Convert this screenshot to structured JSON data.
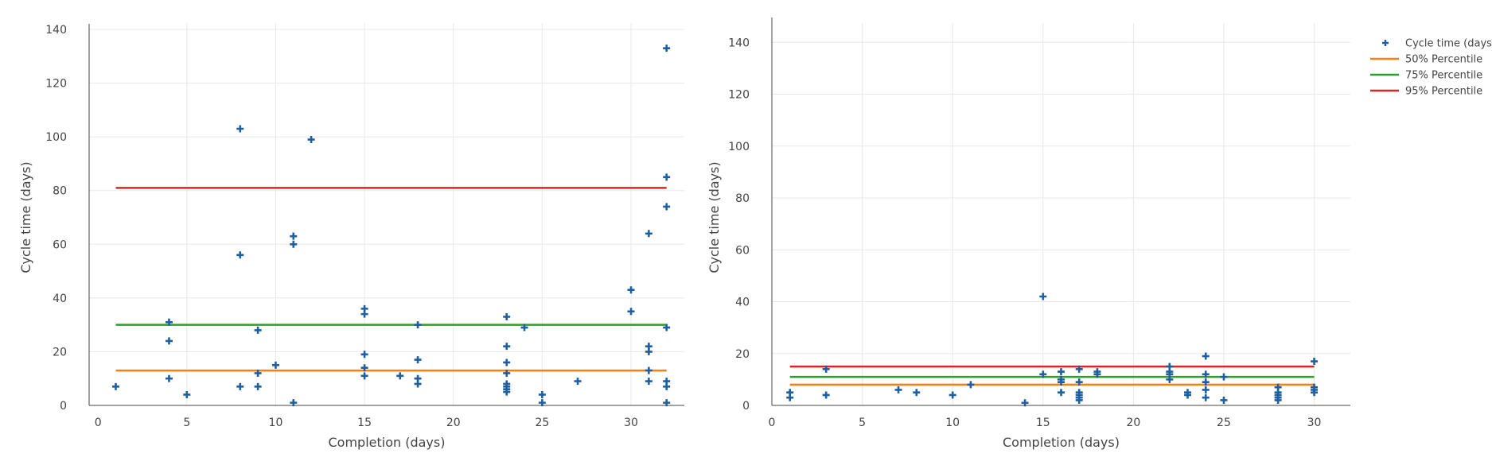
{
  "chart_data": [
    {
      "type": "scatter",
      "xlabel": "Completion (days)",
      "ylabel": "Cycle time (days)",
      "xlim": [
        -0.5,
        33
      ],
      "ylim": [
        0,
        140
      ],
      "xticks": [
        0,
        5,
        10,
        15,
        20,
        25,
        30
      ],
      "yticks": [
        0,
        20,
        40,
        60,
        80,
        100,
        120,
        140
      ],
      "grid": true,
      "series": [
        {
          "name": "Cycle time (days)",
          "kind": "scatter",
          "color": "#1f5fa0",
          "points": [
            [
              1,
              7
            ],
            [
              4,
              31
            ],
            [
              4,
              24
            ],
            [
              4,
              10
            ],
            [
              5,
              4
            ],
            [
              8,
              103
            ],
            [
              8,
              56
            ],
            [
              8,
              7
            ],
            [
              9,
              28
            ],
            [
              9,
              12
            ],
            [
              9,
              7
            ],
            [
              10,
              15
            ],
            [
              11,
              63
            ],
            [
              11,
              60
            ],
            [
              11,
              1
            ],
            [
              12,
              99
            ],
            [
              15,
              36
            ],
            [
              15,
              34
            ],
            [
              15,
              19
            ],
            [
              15,
              14
            ],
            [
              15,
              11
            ],
            [
              17,
              11
            ],
            [
              18,
              30
            ],
            [
              18,
              17
            ],
            [
              18,
              10
            ],
            [
              18,
              8
            ],
            [
              23,
              33
            ],
            [
              23,
              22
            ],
            [
              23,
              16
            ],
            [
              23,
              12
            ],
            [
              23,
              8
            ],
            [
              23,
              7
            ],
            [
              23,
              6
            ],
            [
              23,
              5
            ],
            [
              24,
              29
            ],
            [
              25,
              4
            ],
            [
              25,
              1
            ],
            [
              27,
              9
            ],
            [
              30,
              43
            ],
            [
              30,
              35
            ],
            [
              31,
              64
            ],
            [
              31,
              22
            ],
            [
              31,
              20
            ],
            [
              31,
              13
            ],
            [
              31,
              9
            ],
            [
              32,
              133
            ],
            [
              32,
              85
            ],
            [
              32,
              74
            ],
            [
              32,
              29
            ],
            [
              32,
              9
            ],
            [
              32,
              7
            ],
            [
              32,
              1
            ]
          ]
        },
        {
          "name": "50% Percentile",
          "kind": "line",
          "color": "#ff7f0e",
          "x": [
            1,
            32
          ],
          "y": [
            13,
            13
          ]
        },
        {
          "name": "75% Percentile",
          "kind": "line",
          "color": "#2ca02c",
          "x": [
            1,
            32
          ],
          "y": [
            30,
            30
          ]
        },
        {
          "name": "95% Percentile",
          "kind": "line",
          "color": "#d62728",
          "x": [
            1,
            32
          ],
          "y": [
            81,
            81
          ]
        }
      ]
    },
    {
      "type": "scatter",
      "xlabel": "Completion (days)",
      "ylabel": "Cycle time (days)",
      "xlim": [
        0,
        32
      ],
      "ylim": [
        0,
        145
      ],
      "xticks": [
        0,
        5,
        10,
        15,
        20,
        25,
        30
      ],
      "yticks": [
        0,
        20,
        40,
        60,
        80,
        100,
        120,
        140
      ],
      "grid": true,
      "legend_position": "top-right",
      "series": [
        {
          "name": "Cycle time (days)",
          "kind": "scatter",
          "color": "#1f5fa0",
          "points": [
            [
              1,
              5
            ],
            [
              1,
              3
            ],
            [
              3,
              14
            ],
            [
              3,
              4
            ],
            [
              7,
              6
            ],
            [
              8,
              5
            ],
            [
              10,
              4
            ],
            [
              11,
              8
            ],
            [
              14,
              1
            ],
            [
              15,
              42
            ],
            [
              15,
              12
            ],
            [
              16,
              13
            ],
            [
              16,
              10
            ],
            [
              16,
              9
            ],
            [
              16,
              5
            ],
            [
              17,
              14
            ],
            [
              17,
              9
            ],
            [
              17,
              5
            ],
            [
              17,
              4
            ],
            [
              17,
              3
            ],
            [
              17,
              2
            ],
            [
              18,
              13
            ],
            [
              18,
              12
            ],
            [
              22,
              15
            ],
            [
              22,
              13
            ],
            [
              22,
              12
            ],
            [
              22,
              10
            ],
            [
              23,
              5
            ],
            [
              23,
              4
            ],
            [
              24,
              19
            ],
            [
              24,
              12
            ],
            [
              24,
              9
            ],
            [
              24,
              6
            ],
            [
              24,
              3
            ],
            [
              25,
              11
            ],
            [
              25,
              2
            ],
            [
              28,
              7
            ],
            [
              28,
              5
            ],
            [
              28,
              4
            ],
            [
              28,
              3
            ],
            [
              28,
              2
            ],
            [
              30,
              17
            ],
            [
              30,
              7
            ],
            [
              30,
              6
            ],
            [
              30,
              5
            ]
          ]
        },
        {
          "name": "50% Percentile",
          "kind": "line",
          "color": "#ff7f0e",
          "x": [
            1,
            30
          ],
          "y": [
            8,
            8
          ]
        },
        {
          "name": "75% Percentile",
          "kind": "line",
          "color": "#2ca02c",
          "x": [
            1,
            30
          ],
          "y": [
            11,
            11
          ]
        },
        {
          "name": "95% Percentile",
          "kind": "line",
          "color": "#d62728",
          "x": [
            1,
            30
          ],
          "y": [
            15,
            15
          ]
        }
      ]
    }
  ]
}
